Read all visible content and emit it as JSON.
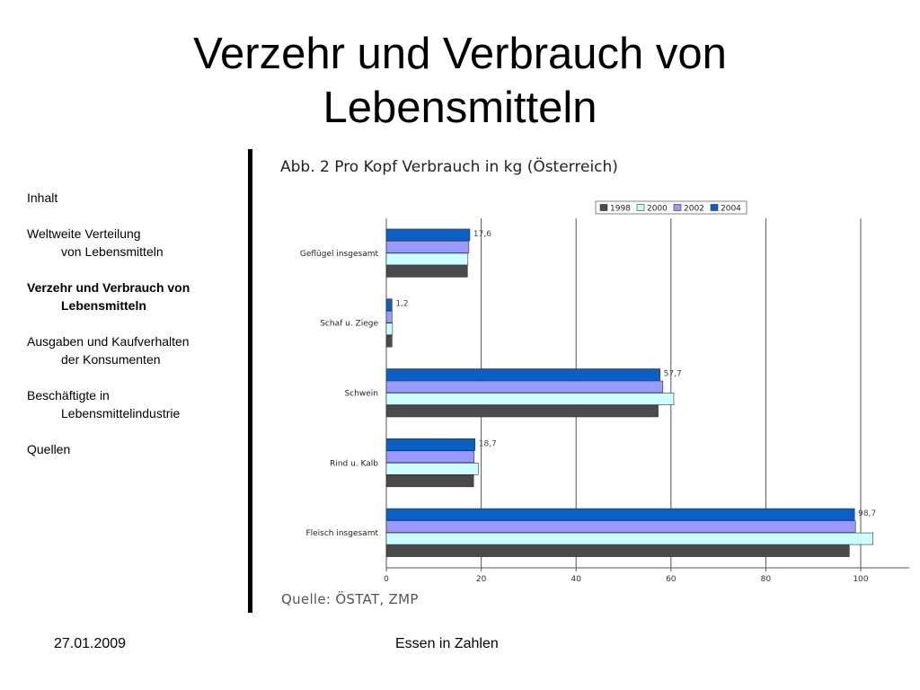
{
  "slide": {
    "title_line1": "Verzehr und Verbrauch von",
    "title_line2": "Lebensmitteln"
  },
  "nav": {
    "items": [
      {
        "line1": "Inhalt",
        "line2": ""
      },
      {
        "line1": "Weltweite Verteilung",
        "line2": "von Lebensmitteln"
      },
      {
        "line1": "Verzehr und Verbrauch von",
        "line2": "Lebensmitteln"
      },
      {
        "line1": "Ausgaben und Kaufverhalten",
        "line2": "der Konsumenten"
      },
      {
        "line1": "Beschäftigte in",
        "line2": "Lebensmittelindustrie"
      },
      {
        "line1": "Quellen",
        "line2": ""
      }
    ]
  },
  "chart_title": "Abb. 2 Pro Kopf Verbrauch in kg (Österreich)",
  "source": "Quelle: ÖSTAT, ZMP",
  "footer": {
    "date": "27.01.2009",
    "center": "Essen in Zahlen"
  },
  "chart_data": {
    "type": "bar",
    "orientation": "horizontal",
    "title": "Abb. 2 Pro Kopf Verbrauch in kg (Österreich)",
    "categories": [
      "Geflügel insgesamt",
      "Schaf u. Ziege",
      "Schwein",
      "Rind u. Kalb",
      "Fleisch insgesamt"
    ],
    "series": [
      {
        "name": "1998",
        "color": "#4a4a4a",
        "values": [
          17.1,
          1.2,
          57.3,
          18.4,
          97.6
        ]
      },
      {
        "name": "2000",
        "color": "#ccffff",
        "values": [
          17.2,
          1.3,
          60.6,
          19.4,
          102.6
        ]
      },
      {
        "name": "2002",
        "color": "#9999ff",
        "values": [
          17.4,
          1.2,
          58.3,
          18.5,
          98.9
        ]
      },
      {
        "name": "2004",
        "color": "#0a5fc8",
        "values": [
          17.6,
          1.2,
          57.7,
          18.7,
          98.7
        ]
      }
    ],
    "data_labels": [
      "17,6",
      "1,2",
      "57,7",
      "18,7",
      "98,7"
    ],
    "xlim": [
      0,
      100
    ],
    "x_ticks": [
      "0",
      "20",
      "40",
      "60",
      "80",
      "100"
    ],
    "grid": true,
    "legend_position": "top-right"
  }
}
